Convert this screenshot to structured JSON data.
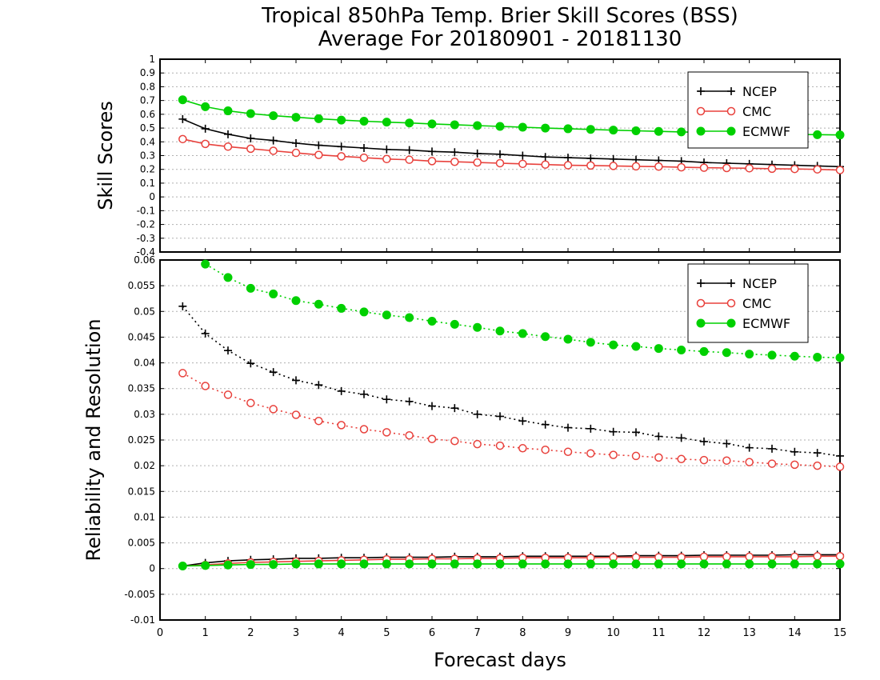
{
  "title": "Tropical 850hPa Temp. Brier Skill Scores (BSS)",
  "subtitle": "Average For 20180901 - 20181130",
  "xlabel": "Forecast days",
  "colors": {
    "NCEP": "#000000",
    "CMC": "#e8413c",
    "ECMWF": "#00d000"
  },
  "chart_data": [
    {
      "type": "line",
      "ylabel": "Skill Scores",
      "xlim": [
        0,
        15
      ],
      "ylim": [
        -0.4,
        1
      ],
      "xticks": [
        "0",
        "1",
        "2",
        "3",
        "4",
        "5",
        "6",
        "7",
        "8",
        "9",
        "10",
        "11",
        "12",
        "13",
        "14",
        "15"
      ],
      "yticks": [
        "-0.4",
        "-0.3",
        "-0.2",
        "-0.1",
        "0",
        "0.1",
        "0.2",
        "0.3",
        "0.4",
        "0.5",
        "0.6",
        "0.7",
        "0.8",
        "0.9",
        "1"
      ],
      "grid": true,
      "legend": "top-right",
      "x": [
        0.5,
        1,
        1.5,
        2,
        2.5,
        3,
        3.5,
        4,
        4.5,
        5,
        5.5,
        6,
        6.5,
        7,
        7.5,
        8,
        8.5,
        9,
        9.5,
        10,
        10.5,
        11,
        11.5,
        12,
        12.5,
        13,
        13.5,
        14,
        14.5,
        15
      ],
      "series": [
        {
          "name": "NCEP",
          "marker": "plus",
          "line": "solid",
          "values": [
            0.565,
            0.495,
            0.455,
            0.425,
            0.41,
            0.39,
            0.375,
            0.365,
            0.355,
            0.345,
            0.34,
            0.33,
            0.325,
            0.315,
            0.31,
            0.3,
            0.29,
            0.285,
            0.28,
            0.275,
            0.27,
            0.265,
            0.26,
            0.25,
            0.245,
            0.24,
            0.235,
            0.23,
            0.225,
            0.22
          ]
        },
        {
          "name": "CMC",
          "marker": "open-circle",
          "line": "solid",
          "values": [
            0.42,
            0.385,
            0.365,
            0.35,
            0.335,
            0.32,
            0.305,
            0.295,
            0.285,
            0.275,
            0.27,
            0.26,
            0.255,
            0.25,
            0.245,
            0.24,
            0.235,
            0.23,
            0.228,
            0.225,
            0.222,
            0.22,
            0.215,
            0.212,
            0.21,
            0.208,
            0.205,
            0.203,
            0.2,
            0.195
          ]
        },
        {
          "name": "ECMWF",
          "marker": "filled-circle",
          "line": "solid",
          "values": [
            0.705,
            0.655,
            0.625,
            0.605,
            0.59,
            0.578,
            0.568,
            0.558,
            0.55,
            0.543,
            0.537,
            0.53,
            0.524,
            0.518,
            0.512,
            0.506,
            0.5,
            0.495,
            0.49,
            0.485,
            0.48,
            0.476,
            0.472,
            0.468,
            0.464,
            0.46,
            0.457,
            0.454,
            0.452,
            0.45
          ]
        }
      ]
    },
    {
      "type": "line",
      "ylabel": "Reliability and Resolution",
      "xlim": [
        0,
        15
      ],
      "ylim": [
        -0.01,
        0.06
      ],
      "xticks": [
        "0",
        "1",
        "2",
        "3",
        "4",
        "5",
        "6",
        "7",
        "8",
        "9",
        "10",
        "11",
        "12",
        "13",
        "14",
        "15"
      ],
      "yticks": [
        "-0.01",
        "-0.005",
        "0",
        "0.005",
        "0.01",
        "0.015",
        "0.02",
        "0.025",
        "0.03",
        "0.035",
        "0.04",
        "0.045",
        "0.05",
        "0.055",
        "0.06"
      ],
      "grid": true,
      "legend": "top-right",
      "x": [
        0.5,
        1,
        1.5,
        2,
        2.5,
        3,
        3.5,
        4,
        4.5,
        5,
        5.5,
        6,
        6.5,
        7,
        7.5,
        8,
        8.5,
        9,
        9.5,
        10,
        10.5,
        11,
        11.5,
        12,
        12.5,
        13,
        13.5,
        14,
        14.5,
        15
      ],
      "series": [
        {
          "name": "NCEP",
          "marker": "plus",
          "line": "dotted",
          "values": [
            0.051,
            0.0457,
            0.0424,
            0.0399,
            0.0382,
            0.0366,
            0.0357,
            0.0345,
            0.0339,
            0.0329,
            0.0325,
            0.0316,
            0.0312,
            0.03,
            0.0296,
            0.0287,
            0.028,
            0.0274,
            0.0272,
            0.0266,
            0.0265,
            0.0257,
            0.0254,
            0.0247,
            0.0243,
            0.0235,
            0.0233,
            0.0227,
            0.0225,
            0.0219
          ]
        },
        {
          "name": "CMC",
          "marker": "open-circle",
          "line": "dotted",
          "values": [
            0.038,
            0.0355,
            0.0338,
            0.0322,
            0.031,
            0.0299,
            0.0287,
            0.0279,
            0.0271,
            0.0265,
            0.0259,
            0.0252,
            0.0248,
            0.0242,
            0.0239,
            0.0234,
            0.0231,
            0.0227,
            0.0224,
            0.0221,
            0.0219,
            0.0216,
            0.0213,
            0.0211,
            0.021,
            0.0207,
            0.0204,
            0.0202,
            0.02,
            0.0198
          ]
        },
        {
          "name": "ECMWF",
          "marker": "filled-circle",
          "line": "dotted",
          "values": [
            null,
            0.0592,
            0.0566,
            0.0545,
            0.0534,
            0.0521,
            0.0514,
            0.0506,
            0.0499,
            0.0493,
            0.0488,
            0.0481,
            0.0475,
            0.0469,
            0.0462,
            0.0457,
            0.0451,
            0.0446,
            0.044,
            0.0435,
            0.0432,
            0.0428,
            0.0425,
            0.0422,
            0.042,
            0.0417,
            0.0415,
            0.0413,
            0.0411,
            0.041
          ]
        },
        {
          "name": "NCEP",
          "marker": "plus",
          "line": "solid",
          "values": [
            0.0005,
            0.0011,
            0.0015,
            0.0017,
            0.0018,
            0.002,
            0.002,
            0.0021,
            0.0021,
            0.0022,
            0.0022,
            0.0022,
            0.0023,
            0.0023,
            0.0023,
            0.0024,
            0.0024,
            0.0024,
            0.0024,
            0.0024,
            0.0025,
            0.0025,
            0.0025,
            0.0026,
            0.0026,
            0.0026,
            0.0026,
            0.0027,
            0.0027,
            0.0027
          ]
        },
        {
          "name": "CMC",
          "marker": "open-circle",
          "line": "solid",
          "values": [
            0.0005,
            0.0007,
            0.001,
            0.0012,
            0.0013,
            0.0014,
            0.0015,
            0.0016,
            0.0017,
            0.0018,
            0.0018,
            0.0019,
            0.0019,
            0.002,
            0.002,
            0.0021,
            0.0021,
            0.0021,
            0.0021,
            0.0022,
            0.0022,
            0.0022,
            0.0022,
            0.0023,
            0.0023,
            0.0023,
            0.0023,
            0.0023,
            0.0024,
            0.0024
          ]
        },
        {
          "name": "ECMWF",
          "marker": "filled-circle",
          "line": "solid",
          "values": [
            0.0005,
            0.0006,
            0.0007,
            0.0008,
            0.0008,
            0.0009,
            0.0009,
            0.0009,
            0.0009,
            0.0009,
            0.0009,
            0.0009,
            0.0009,
            0.0009,
            0.0009,
            0.0009,
            0.0009,
            0.0009,
            0.0009,
            0.0009,
            0.0009,
            0.0009,
            0.0009,
            0.0009,
            0.0009,
            0.0009,
            0.0009,
            0.0009,
            0.0009,
            0.0009
          ]
        }
      ]
    }
  ]
}
